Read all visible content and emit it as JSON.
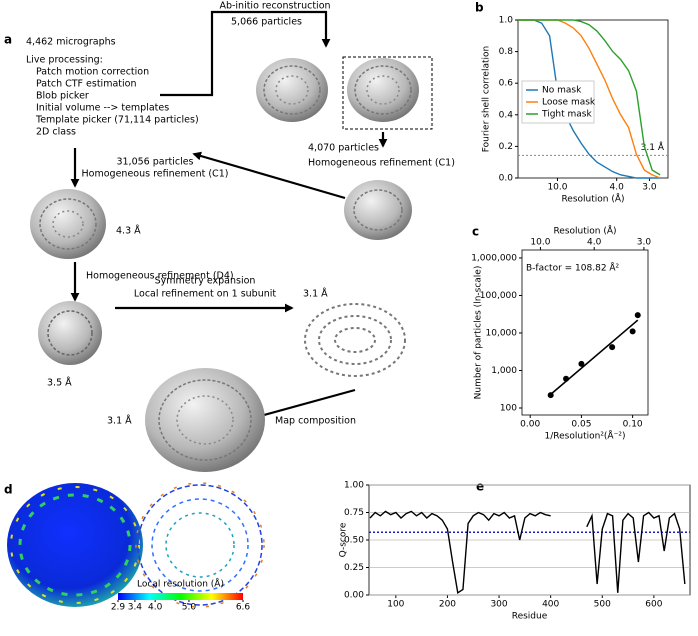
{
  "panels": {
    "a": "a",
    "b": "b",
    "c": "c",
    "d": "d",
    "e": "e"
  },
  "workflow": {
    "micrographs": "4,462 micrographs",
    "live_processing": [
      "Live processing:",
      "Patch motion correction",
      "Patch CTF estimation",
      "Blob picker",
      "Initial volume --> templates",
      "Template picker (71,114 particles)",
      "2D class"
    ],
    "abinitio": "Ab-initio reconstruction",
    "p5066": "5,066 particles",
    "p4070": "4,070 particles",
    "homo1": "Homogeneous refinement (C1)",
    "p31056": "31,056 particles",
    "homo2": "Homogeneous refinement (C1)",
    "res43": "4.3 Å",
    "homo3": "Homogeneous refinement (D4)",
    "symexp": "Symmetry expansion",
    "localref": "Local refinement on 1 subunit",
    "res35": "3.5 Å",
    "res31a": "3.1 Å",
    "mapcomp": "Map composition",
    "res31b": "3.1 Å"
  },
  "chart_data": [
    {
      "type": "line",
      "xlabel": "Resolution (Å)",
      "ylabel": "Fourier shell correlation",
      "x": [
        0,
        0.02,
        0.04,
        0.06,
        0.08,
        0.1,
        0.12,
        0.14,
        0.16,
        0.18,
        0.2,
        0.22,
        0.24,
        0.26,
        0.28,
        0.3,
        0.32,
        0.34,
        0.36
      ],
      "series": [
        {
          "name": "No mask",
          "color": "#1f77b4",
          "values": [
            1,
            1,
            1,
            0.98,
            0.9,
            0.55,
            0.4,
            0.3,
            0.22,
            0.15,
            0.1,
            0.07,
            0.04,
            0.02,
            0.01,
            0,
            0,
            0,
            0
          ]
        },
        {
          "name": "Loose mask",
          "color": "#ff7f0e",
          "values": [
            1,
            1,
            1,
            1,
            1,
            1,
            0.98,
            0.95,
            0.9,
            0.82,
            0.72,
            0.62,
            0.5,
            0.4,
            0.32,
            0.15,
            0.05,
            0.02,
            0
          ]
        },
        {
          "name": "Tight mask",
          "color": "#2ca02c",
          "values": [
            1,
            1,
            1,
            1,
            1,
            1,
            1,
            1,
            0.99,
            0.97,
            0.93,
            0.87,
            0.8,
            0.75,
            0.68,
            0.55,
            0.2,
            0.05,
            0.02
          ]
        }
      ],
      "xlim": [
        0,
        0.38
      ],
      "xticks": [
        {
          "value": 0.1,
          "label": "10.0"
        },
        {
          "value": 0.25,
          "label": "4.0"
        },
        {
          "value": 0.333,
          "label": "3.0"
        }
      ],
      "ylim": [
        0,
        1
      ],
      "yticks": [
        {
          "value": 0,
          "label": "0.0"
        },
        0.2,
        0.4,
        0.6,
        0.8,
        {
          "value": 1,
          "label": "1.0"
        }
      ],
      "threshold": 0.143,
      "threshold_label": "3.1 Å",
      "threshold_color": "#888888",
      "legend": "left",
      "grid": false
    },
    {
      "type": "scatter",
      "xlabel": "1/Resolution²(Å⁻²)",
      "ylabel": "Number of particles (ln-scale)",
      "top_xlabel": "Resolution (Å)",
      "top_xticks": [
        {
          "value": 0.01,
          "label": "10.0"
        },
        {
          "value": 0.0625,
          "label": "4.0"
        },
        {
          "value": 0.111,
          "label": "3.0"
        }
      ],
      "annotation": "B-factor = 108.82 Å²",
      "x": [
        0.02,
        0.035,
        0.05,
        0.08,
        0.1,
        0.105
      ],
      "values": [
        220,
        600,
        1500,
        4200,
        11000,
        30000
      ],
      "color": "#000000",
      "fit": {
        "x": [
          0.02,
          0.105
        ],
        "values": [
          230,
          22000
        ]
      },
      "xlim": [
        -0.008,
        0.115
      ],
      "xticks": [
        {
          "value": 0,
          "label": "0.00"
        },
        0.05,
        {
          "value": 0.1,
          "label": "0.10"
        }
      ],
      "ylim": [
        65,
        1630000
      ],
      "yscale": "log",
      "yticks": [
        100,
        {
          "value": 1000,
          "label": "1,000"
        },
        {
          "value": 10000,
          "label": "10,000"
        },
        {
          "value": 100000,
          "label": "100,000"
        },
        {
          "value": 1000000,
          "label": "1,000,000"
        }
      ],
      "grid": false
    },
    {
      "type": "line",
      "xlabel": "Residue",
      "ylabel": "Q-score",
      "x": [
        50,
        60,
        70,
        80,
        90,
        100,
        110,
        120,
        130,
        140,
        150,
        160,
        170,
        180,
        190,
        200,
        210,
        220,
        230,
        240,
        250,
        260,
        270,
        280,
        290,
        300,
        310,
        320,
        330,
        340,
        350,
        360,
        370,
        380,
        390,
        400,
        410,
        420,
        430,
        440,
        450,
        460,
        470,
        480,
        490,
        500,
        510,
        520,
        530,
        540,
        550,
        560,
        570,
        580,
        590,
        600,
        610,
        620,
        630,
        640,
        650,
        660
      ],
      "values": [
        0.7,
        0.75,
        0.72,
        0.76,
        0.73,
        0.75,
        0.7,
        0.74,
        0.76,
        0.72,
        0.75,
        0.7,
        0.74,
        0.72,
        0.68,
        0.6,
        0.3,
        0.02,
        0.05,
        0.65,
        0.72,
        0.75,
        0.73,
        0.68,
        0.74,
        0.72,
        0.75,
        0.7,
        0.72,
        0.5,
        0.7,
        0.74,
        0.72,
        0.75,
        0.73,
        0.72,
        null,
        null,
        null,
        null,
        null,
        null,
        0.62,
        0.72,
        0.1,
        0.6,
        0.74,
        0.72,
        0.02,
        0.68,
        0.74,
        0.7,
        0.3,
        0.72,
        0.75,
        0.7,
        0.72,
        0.4,
        0.7,
        0.74,
        0.6,
        0.1
      ],
      "color": "#000000",
      "mean_line": 0.57,
      "mean_color": "#1a1acc",
      "xlim": [
        48,
        670
      ],
      "xticks": [
        100,
        200,
        300,
        400,
        500,
        600
      ],
      "ylim": [
        0,
        1
      ],
      "yticks": [
        {
          "value": 0,
          "label": "0.00"
        },
        0.25,
        {
          "value": 0.5,
          "label": "0.50"
        },
        0.75,
        {
          "value": 1,
          "label": "1.00"
        }
      ],
      "grid": true
    },
    {
      "type": "colorbar",
      "title": "Local resolution (Å)",
      "colors": [
        "#0000ff",
        "#00ffff",
        "#00ff00",
        "#ffff00",
        "#ff0000"
      ],
      "xlim": [
        2.9,
        6.6
      ],
      "xticks": [
        2.9,
        3.4,
        {
          "value": 4,
          "label": "4.0"
        },
        {
          "value": 5,
          "label": "5.0"
        },
        6.6
      ]
    }
  ]
}
